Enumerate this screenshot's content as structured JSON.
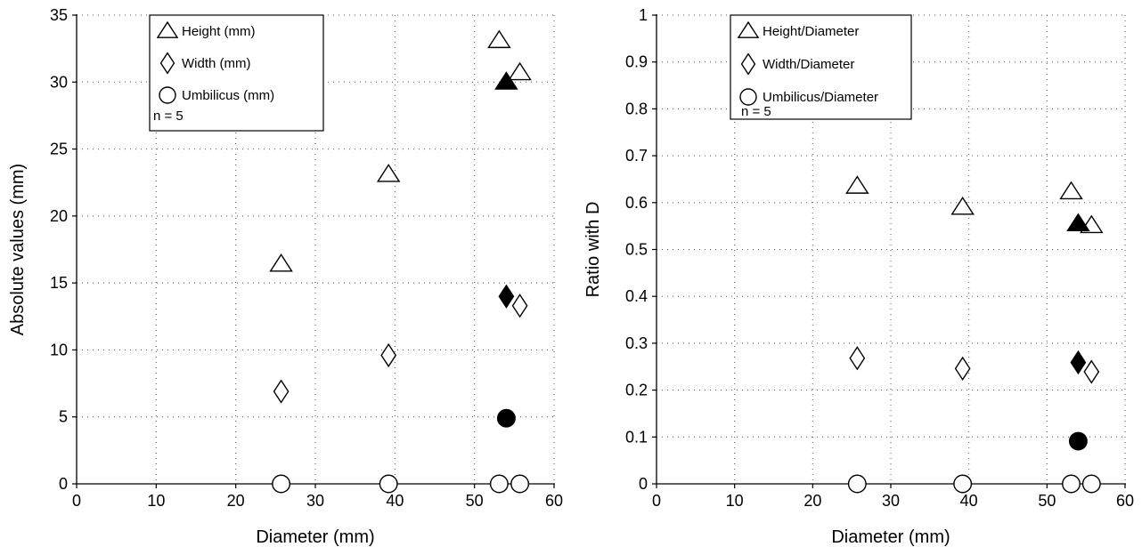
{
  "chart_data": [
    {
      "type": "scatter",
      "xlabel": "Diameter (mm)",
      "ylabel": "Absolute values (mm)",
      "xlim": [
        0,
        60
      ],
      "ylim": [
        0,
        35
      ],
      "xticks": [
        0,
        10,
        20,
        30,
        40,
        50,
        60
      ],
      "yticks": [
        0,
        5,
        10,
        15,
        20,
        25,
        30,
        35
      ],
      "grid": true,
      "legend_position": "top-left",
      "annotation": "n = 5",
      "series": [
        {
          "name": "Height (mm)",
          "marker": "triangle",
          "filled": false,
          "points": [
            [
              25.7,
              16.4
            ],
            [
              39.2,
              23.1
            ],
            [
              53.1,
              33.1
            ],
            [
              55.7,
              30.7
            ]
          ]
        },
        {
          "name": "Width (mm)",
          "marker": "diamond",
          "filled": false,
          "points": [
            [
              25.7,
              6.9
            ],
            [
              39.2,
              9.6
            ],
            [
              55.7,
              13.3
            ]
          ]
        },
        {
          "name": "Umbilicus (mm)",
          "marker": "circle",
          "filled": false,
          "points": [
            [
              25.7,
              0
            ],
            [
              39.2,
              0
            ],
            [
              53.1,
              0
            ],
            [
              55.7,
              0
            ]
          ]
        },
        {
          "marker": "triangle",
          "filled": true,
          "points": [
            [
              54.0,
              30.0
            ]
          ]
        },
        {
          "marker": "diamond",
          "filled": true,
          "points": [
            [
              54.0,
              14.0
            ]
          ]
        },
        {
          "marker": "circle",
          "filled": true,
          "points": [
            [
              54.0,
              4.9
            ]
          ]
        }
      ]
    },
    {
      "type": "scatter",
      "xlabel": "Diameter (mm)",
      "ylabel": "Ratio with D",
      "xlim": [
        0,
        60
      ],
      "ylim": [
        0,
        1
      ],
      "xticks": [
        0,
        10,
        20,
        30,
        40,
        50,
        60
      ],
      "yticks": [
        0,
        0.1,
        0.2,
        0.3,
        0.4,
        0.5,
        0.6,
        0.7,
        0.8,
        0.9,
        1
      ],
      "grid": true,
      "legend_position": "top-left",
      "annotation": "n = 5",
      "series": [
        {
          "name": "Height/Diameter",
          "marker": "triangle",
          "filled": false,
          "points": [
            [
              25.7,
              0.635
            ],
            [
              39.2,
              0.59
            ],
            [
              53.1,
              0.623
            ],
            [
              55.7,
              0.551
            ]
          ]
        },
        {
          "name": "Width/Diameter",
          "marker": "diamond",
          "filled": false,
          "points": [
            [
              25.7,
              0.268
            ],
            [
              39.2,
              0.246
            ],
            [
              55.7,
              0.239
            ]
          ]
        },
        {
          "name": "Umbilicus/Diameter",
          "marker": "circle",
          "filled": false,
          "points": [
            [
              25.7,
              0
            ],
            [
              39.2,
              0
            ],
            [
              53.1,
              0
            ],
            [
              55.7,
              0
            ]
          ]
        },
        {
          "marker": "triangle",
          "filled": true,
          "points": [
            [
              54.0,
              0.555
            ]
          ]
        },
        {
          "marker": "diamond",
          "filled": true,
          "points": [
            [
              54.0,
              0.259
            ]
          ]
        },
        {
          "marker": "circle",
          "filled": true,
          "points": [
            [
              54.0,
              0.091
            ]
          ]
        }
      ]
    }
  ]
}
